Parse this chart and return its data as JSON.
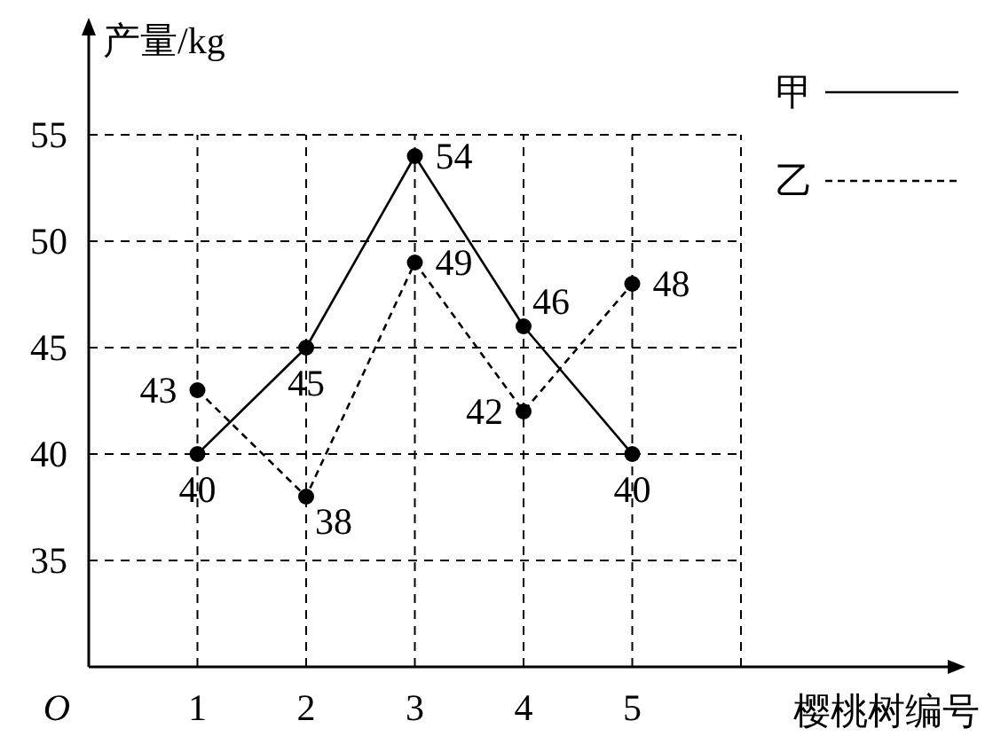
{
  "chart_data": {
    "type": "line",
    "ylabel": "产量/kg",
    "xlabel": "樱桃树编号",
    "x": [
      1,
      2,
      3,
      4,
      5
    ],
    "xlim": [
      0,
      8
    ],
    "ylim": [
      30,
      60
    ],
    "xticks": [
      1,
      2,
      3,
      4,
      5,
      {
        "value": 6,
        "label": null
      }
    ],
    "yticks": [
      35,
      40,
      45,
      50,
      55
    ],
    "series": [
      {
        "name": "甲",
        "color": "#000000",
        "line_style": "solid",
        "values": [
          40,
          45,
          54,
          46,
          40
        ]
      },
      {
        "name": "乙",
        "color": "#000000",
        "line_style": "dashed",
        "values": [
          43,
          38,
          49,
          42,
          48
        ]
      }
    ],
    "marker": "circle",
    "grid": true,
    "legend": "top right",
    "data_labels": true,
    "annotations": [
      "O"
    ]
  }
}
